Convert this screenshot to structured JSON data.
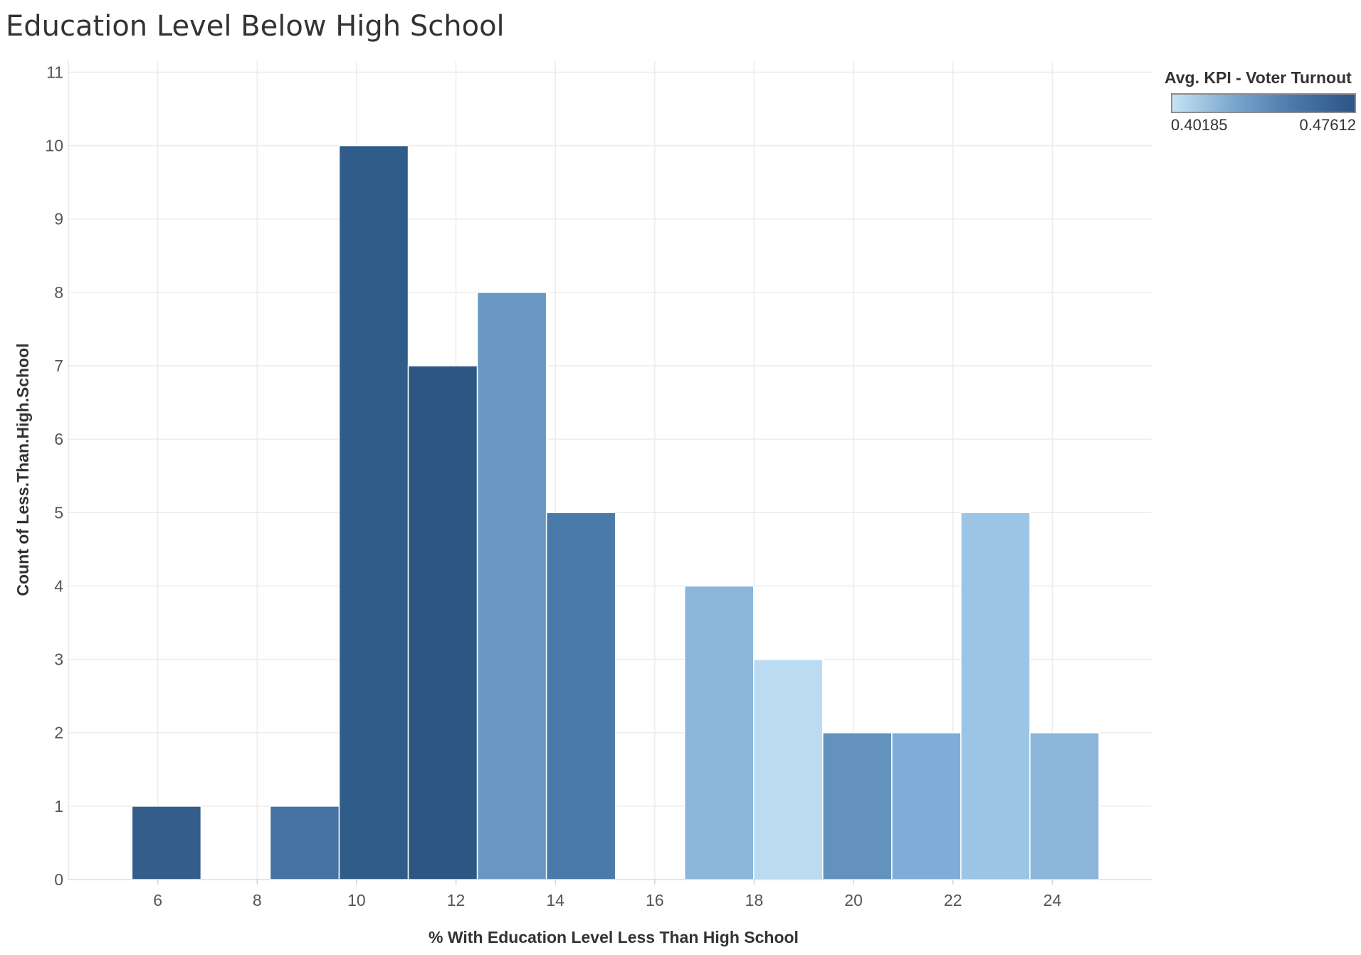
{
  "chart_data": {
    "type": "bar",
    "title": "Education Level Below High School",
    "xlabel": "% With Education Level Less Than High School",
    "ylabel": "Count of Less.Than.High.School",
    "xlim": [
      4.2,
      26.0
    ],
    "ylim": [
      0,
      11.15
    ],
    "xticks": [
      6,
      8,
      10,
      12,
      14,
      16,
      18,
      20,
      22,
      24
    ],
    "yticks": [
      0,
      1,
      2,
      3,
      4,
      5,
      6,
      7,
      8,
      9,
      10,
      11
    ],
    "bin_width": 1.39,
    "grid": true,
    "bins": [
      {
        "x_start": 5.48,
        "x_end": 6.87,
        "count": 1,
        "color": "#335e8c"
      },
      {
        "x_start": 8.26,
        "x_end": 9.65,
        "count": 1,
        "color": "#4673a2"
      },
      {
        "x_start": 9.65,
        "x_end": 11.04,
        "count": 10,
        "color": "#2f5c89"
      },
      {
        "x_start": 11.04,
        "x_end": 12.43,
        "count": 7,
        "color": "#2c5782"
      },
      {
        "x_start": 12.43,
        "x_end": 13.82,
        "count": 8,
        "color": "#6797c2"
      },
      {
        "x_start": 13.82,
        "x_end": 15.21,
        "count": 5,
        "color": "#4a7aa8"
      },
      {
        "x_start": 16.6,
        "x_end": 17.99,
        "count": 4,
        "color": "#8bb6da"
      },
      {
        "x_start": 17.99,
        "x_end": 19.38,
        "count": 3,
        "color": "#bbdcf0"
      },
      {
        "x_start": 19.38,
        "x_end": 20.77,
        "count": 2,
        "color": "#6393bc"
      },
      {
        "x_start": 20.77,
        "x_end": 22.16,
        "count": 2,
        "color": "#7eaed7"
      },
      {
        "x_start": 22.16,
        "x_end": 23.55,
        "count": 5,
        "color": "#9cc5e5"
      },
      {
        "x_start": 23.55,
        "x_end": 24.94,
        "count": 2,
        "color": "#8bb6da"
      }
    ]
  },
  "legend": {
    "title": "Avg. KPI - Voter Turnout",
    "min_label": "0.40185",
    "max_label": "0.47612",
    "color_low": "#c6e3f5",
    "color_high": "#2c5585"
  }
}
